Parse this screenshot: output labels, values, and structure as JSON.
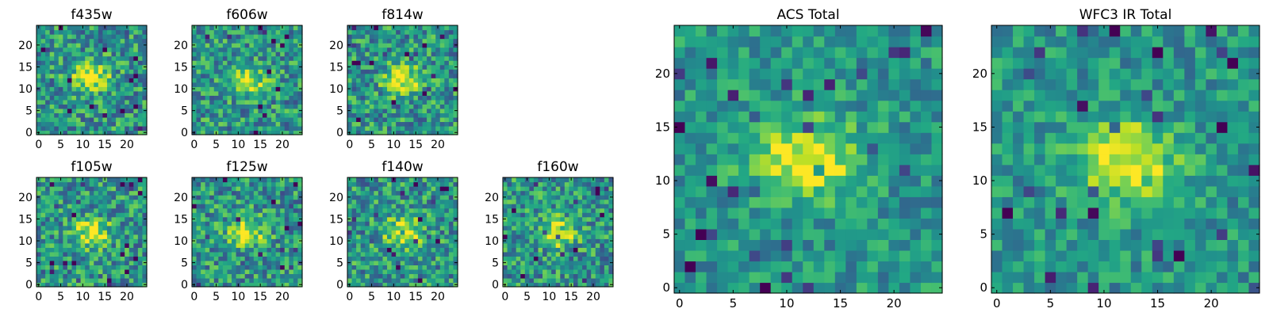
{
  "chart_data": [
    {
      "type": "heatmap",
      "title": "f435w",
      "x_ticks": [
        "0",
        "5",
        "10",
        "15",
        "20"
      ],
      "y_ticks": [
        "0",
        "5",
        "10",
        "15",
        "20"
      ],
      "xlim": [
        0,
        25
      ],
      "ylim": [
        0,
        25
      ],
      "grid_size": 25,
      "colormap": "viridis",
      "peak": {
        "x": 12,
        "y": 13
      }
    },
    {
      "type": "heatmap",
      "title": "f606w",
      "x_ticks": [
        "0",
        "5",
        "10",
        "15",
        "20"
      ],
      "y_ticks": [
        "0",
        "5",
        "10",
        "15",
        "20"
      ],
      "xlim": [
        0,
        25
      ],
      "ylim": [
        0,
        25
      ],
      "grid_size": 25,
      "colormap": "viridis",
      "peak": {
        "x": 12,
        "y": 12
      }
    },
    {
      "type": "heatmap",
      "title": "f814w",
      "x_ticks": [
        "0",
        "5",
        "10",
        "15",
        "20"
      ],
      "y_ticks": [
        "0",
        "5",
        "10",
        "15",
        "20"
      ],
      "xlim": [
        0,
        25
      ],
      "ylim": [
        0,
        25
      ],
      "grid_size": 25,
      "colormap": "viridis",
      "peak": {
        "x": 12,
        "y": 12
      }
    },
    {
      "type": "heatmap",
      "title": "f105w",
      "x_ticks": [
        "0",
        "5",
        "10",
        "15",
        "20"
      ],
      "y_ticks": [
        "0",
        "5",
        "10",
        "15",
        "20"
      ],
      "xlim": [
        0,
        25
      ],
      "ylim": [
        0,
        25
      ],
      "grid_size": 25,
      "colormap": "viridis",
      "peak": {
        "x": 12,
        "y": 12
      }
    },
    {
      "type": "heatmap",
      "title": "f125w",
      "x_ticks": [
        "0",
        "5",
        "10",
        "15",
        "20"
      ],
      "y_ticks": [
        "0",
        "5",
        "10",
        "15",
        "20"
      ],
      "xlim": [
        0,
        25
      ],
      "ylim": [
        0,
        25
      ],
      "grid_size": 25,
      "colormap": "viridis",
      "peak": {
        "x": 12,
        "y": 12
      }
    },
    {
      "type": "heatmap",
      "title": "f140w",
      "x_ticks": [
        "0",
        "5",
        "10",
        "15",
        "20"
      ],
      "y_ticks": [
        "0",
        "5",
        "10",
        "15",
        "20"
      ],
      "xlim": [
        0,
        25
      ],
      "ylim": [
        0,
        25
      ],
      "grid_size": 25,
      "colormap": "viridis",
      "peak": {
        "x": 12,
        "y": 12
      }
    },
    {
      "type": "heatmap",
      "title": "f160w",
      "x_ticks": [
        "0",
        "5",
        "10",
        "15",
        "20"
      ],
      "y_ticks": [
        "0",
        "5",
        "10",
        "15",
        "20"
      ],
      "xlim": [
        0,
        25
      ],
      "ylim": [
        0,
        25
      ],
      "grid_size": 25,
      "colormap": "viridis",
      "peak": {
        "x": 12,
        "y": 12
      }
    },
    {
      "type": "heatmap",
      "title": "ACS Total",
      "x_ticks": [
        "0",
        "5",
        "10",
        "15",
        "20"
      ],
      "y_ticks": [
        "0",
        "5",
        "10",
        "15",
        "20"
      ],
      "xlim": [
        0,
        25
      ],
      "ylim": [
        0,
        25
      ],
      "grid_size": 25,
      "colormap": "viridis",
      "peak": {
        "x": 12,
        "y": 12
      }
    },
    {
      "type": "heatmap",
      "title": "WFC3 IR Total",
      "x_ticks": [
        "0",
        "5",
        "10",
        "15",
        "20"
      ],
      "y_ticks": [
        "0",
        "5",
        "10",
        "15",
        "20"
      ],
      "xlim": [
        0,
        25
      ],
      "ylim": [
        0,
        25
      ],
      "grid_size": 25,
      "colormap": "viridis",
      "peak": {
        "x": 12,
        "y": 12
      }
    }
  ]
}
